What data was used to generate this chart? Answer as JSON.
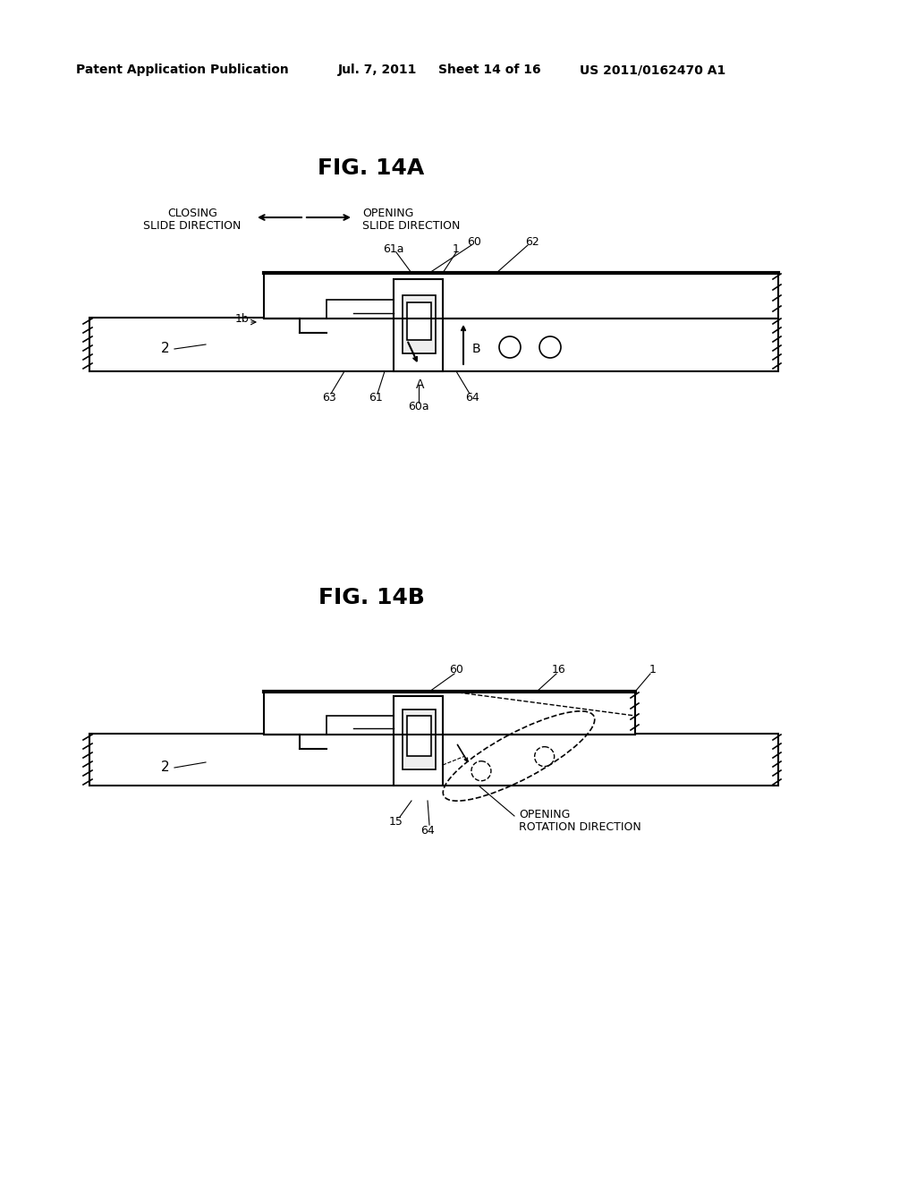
{
  "background_color": "#ffffff",
  "header_left": "Patent Application Publication",
  "header_date": "Jul. 7, 2011",
  "header_sheet": "Sheet 14 of 16",
  "header_right": "US 2011/0162470 A1",
  "fig14a_title": "FIG. 14A",
  "fig14b_title": "FIG. 14B",
  "text_color": "#000000",
  "line_color": "#000000"
}
